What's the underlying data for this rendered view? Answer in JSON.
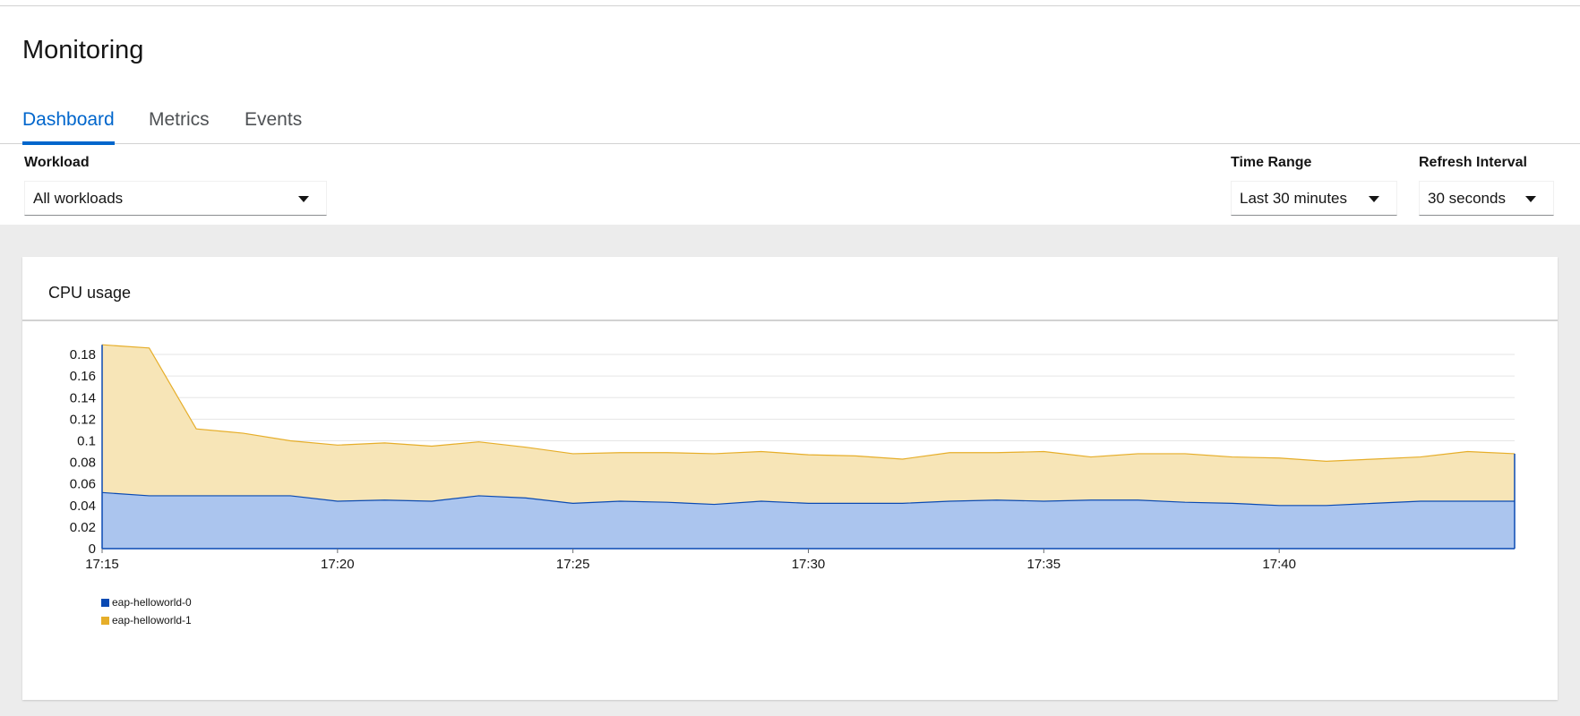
{
  "page": {
    "title": "Monitoring"
  },
  "tabs": [
    {
      "label": "Dashboard",
      "active": true
    },
    {
      "label": "Metrics",
      "active": false
    },
    {
      "label": "Events",
      "active": false
    }
  ],
  "filters": {
    "workload": {
      "label": "Workload",
      "value": "All workloads"
    },
    "time_range": {
      "label": "Time Range",
      "value": "Last 30 minutes"
    },
    "refresh_interval": {
      "label": "Refresh Interval",
      "value": "30 seconds"
    }
  },
  "card": {
    "title": "CPU usage"
  },
  "colors": {
    "accent": "#0066cc",
    "series0_fill": "#abc5ee",
    "series0_line": "#0a4ab3",
    "series1_fill": "#f7e5b7",
    "series1_line": "#e6ae2a"
  },
  "chart_data": {
    "type": "area",
    "stacked": true,
    "title": "CPU usage",
    "xlabel": "",
    "ylabel": "",
    "x_unit": "minutes",
    "x_start": "17:15",
    "x": [
      0,
      1,
      2,
      3,
      4,
      5,
      6,
      7,
      8,
      9,
      10,
      11,
      12,
      13,
      14,
      15,
      16,
      17,
      18,
      19,
      20,
      21,
      22,
      23,
      24,
      25,
      26,
      27,
      28,
      29,
      30
    ],
    "x_ticks": [
      "17:15",
      "17:20",
      "17:25",
      "17:30",
      "17:35",
      "17:40"
    ],
    "y_ticks": [
      "0",
      "0.02",
      "0.04",
      "0.06",
      "0.08",
      "0.1",
      "0.12",
      "0.14",
      "0.16",
      "0.18"
    ],
    "ylim": [
      0,
      0.19
    ],
    "grid": true,
    "legend_position": "bottom-left",
    "series": [
      {
        "name": "eap-helloworld-0",
        "values": [
          0.052,
          0.049,
          0.049,
          0.049,
          0.049,
          0.044,
          0.045,
          0.044,
          0.049,
          0.047,
          0.042,
          0.044,
          0.043,
          0.041,
          0.044,
          0.042,
          0.042,
          0.042,
          0.044,
          0.045,
          0.044,
          0.045,
          0.045,
          0.043,
          0.042,
          0.04,
          0.04,
          0.042,
          0.044,
          0.044,
          0.044
        ]
      },
      {
        "name": "eap-helloworld-1",
        "values": [
          0.137,
          0.137,
          0.062,
          0.058,
          0.051,
          0.052,
          0.053,
          0.051,
          0.05,
          0.047,
          0.046,
          0.045,
          0.046,
          0.047,
          0.046,
          0.045,
          0.044,
          0.041,
          0.045,
          0.044,
          0.046,
          0.04,
          0.043,
          0.045,
          0.043,
          0.044,
          0.041,
          0.041,
          0.041,
          0.046,
          0.044
        ]
      }
    ]
  }
}
